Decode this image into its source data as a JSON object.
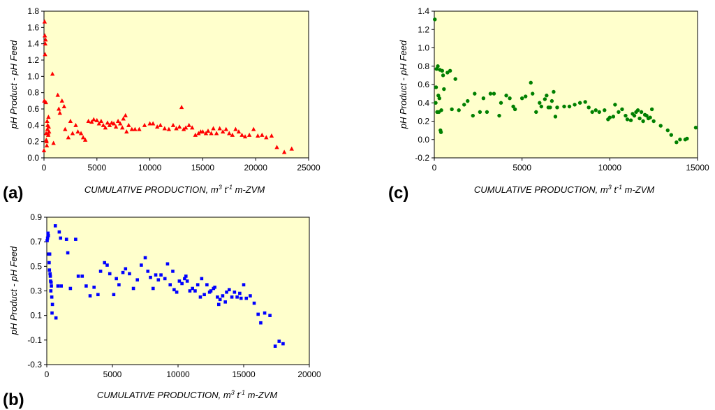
{
  "chart_data": [
    {
      "id": "a",
      "type": "scatter",
      "panel_label": "(a)",
      "xlabel": "CUMULATIVE PRODUCTION, m",
      "xlabel_sup1": "3",
      "xlabel_mid": " t",
      "xlabel_sup2": "-1",
      "xlabel_end": " m-ZVM",
      "ylabel": "pH Product - pH Feed",
      "xlim": [
        0,
        25000
      ],
      "ylim": [
        0,
        1.8
      ],
      "xticks": [
        "0",
        "5000",
        "10000",
        "15000",
        "20000",
        "25000"
      ],
      "yticks": [
        "0.0",
        "0.2",
        "0.4",
        "0.6",
        "0.8",
        "1.0",
        "1.2",
        "1.4",
        "1.6",
        "1.8"
      ],
      "marker": "triangle",
      "color": "#ff0000",
      "plot_bg": "#ffffcc",
      "points": [
        [
          0,
          0.09
        ],
        [
          30,
          0.7
        ],
        [
          60,
          1.67
        ],
        [
          80,
          1.5
        ],
        [
          100,
          1.27
        ],
        [
          120,
          1.4
        ],
        [
          150,
          1.45
        ],
        [
          180,
          0.68
        ],
        [
          200,
          0.3
        ],
        [
          220,
          0.22
        ],
        [
          250,
          0.2
        ],
        [
          270,
          0.15
        ],
        [
          300,
          0.45
        ],
        [
          320,
          0.35
        ],
        [
          350,
          0.4
        ],
        [
          380,
          0.3
        ],
        [
          400,
          0.28
        ],
        [
          420,
          0.5
        ],
        [
          450,
          0.38
        ],
        [
          480,
          0.32
        ],
        [
          800,
          1.03
        ],
        [
          900,
          0.18
        ],
        [
          1300,
          0.77
        ],
        [
          1400,
          0.6
        ],
        [
          1500,
          0.55
        ],
        [
          1700,
          0.7
        ],
        [
          1900,
          0.63
        ],
        [
          2000,
          0.35
        ],
        [
          2300,
          0.25
        ],
        [
          2500,
          0.45
        ],
        [
          2700,
          0.3
        ],
        [
          3000,
          0.4
        ],
        [
          3200,
          0.32
        ],
        [
          3500,
          0.3
        ],
        [
          3700,
          0.25
        ],
        [
          3900,
          0.22
        ],
        [
          4200,
          0.45
        ],
        [
          4500,
          0.44
        ],
        [
          4700,
          0.47
        ],
        [
          5000,
          0.46
        ],
        [
          5200,
          0.42
        ],
        [
          5400,
          0.45
        ],
        [
          5600,
          0.4
        ],
        [
          5800,
          0.37
        ],
        [
          6000,
          0.43
        ],
        [
          6200,
          0.4
        ],
        [
          6400,
          0.43
        ],
        [
          6600,
          0.42
        ],
        [
          6800,
          0.38
        ],
        [
          7000,
          0.45
        ],
        [
          7200,
          0.42
        ],
        [
          7400,
          0.37
        ],
        [
          7500,
          0.48
        ],
        [
          7700,
          0.52
        ],
        [
          7800,
          0.32
        ],
        [
          8000,
          0.4
        ],
        [
          8300,
          0.35
        ],
        [
          8600,
          0.35
        ],
        [
          9000,
          0.35
        ],
        [
          9500,
          0.4
        ],
        [
          10000,
          0.42
        ],
        [
          10300,
          0.42
        ],
        [
          10700,
          0.38
        ],
        [
          11000,
          0.4
        ],
        [
          11400,
          0.36
        ],
        [
          11800,
          0.35
        ],
        [
          12200,
          0.4
        ],
        [
          12500,
          0.36
        ],
        [
          12800,
          0.38
        ],
        [
          13000,
          0.62
        ],
        [
          13200,
          0.35
        ],
        [
          13400,
          0.37
        ],
        [
          13700,
          0.4
        ],
        [
          14000,
          0.37
        ],
        [
          14300,
          0.28
        ],
        [
          14600,
          0.3
        ],
        [
          14800,
          0.32
        ],
        [
          15000,
          0.32
        ],
        [
          15300,
          0.3
        ],
        [
          15500,
          0.33
        ],
        [
          15800,
          0.3
        ],
        [
          16000,
          0.36
        ],
        [
          16300,
          0.3
        ],
        [
          16600,
          0.36
        ],
        [
          16900,
          0.32
        ],
        [
          17200,
          0.35
        ],
        [
          17500,
          0.3
        ],
        [
          17800,
          0.28
        ],
        [
          18100,
          0.35
        ],
        [
          18400,
          0.32
        ],
        [
          18700,
          0.28
        ],
        [
          19000,
          0.26
        ],
        [
          19400,
          0.28
        ],
        [
          19800,
          0.35
        ],
        [
          20200,
          0.27
        ],
        [
          20600,
          0.28
        ],
        [
          21000,
          0.25
        ],
        [
          21500,
          0.27
        ],
        [
          22000,
          0.13
        ],
        [
          22700,
          0.07
        ],
        [
          23400,
          0.11
        ]
      ]
    },
    {
      "id": "c",
      "type": "scatter",
      "panel_label": "(c)",
      "xlabel": "CUMULATIVE PRODUCTION, m",
      "xlabel_sup1": "3",
      "xlabel_mid": " t",
      "xlabel_sup2": "-1",
      "xlabel_end": " m-ZVM",
      "ylabel": "pH Product - pH Feed",
      "xlim": [
        0,
        15000
      ],
      "ylim": [
        -0.2,
        1.4
      ],
      "xticks": [
        "0",
        "5000",
        "10000",
        "15000"
      ],
      "yticks": [
        "-0.2",
        "0.0",
        "0.2",
        "0.4",
        "0.6",
        "0.8",
        "1.0",
        "1.2",
        "1.4"
      ],
      "marker": "circle",
      "color": "#008000",
      "plot_bg": "#ffffcc",
      "points": [
        [
          30,
          1.31
        ],
        [
          80,
          0.4
        ],
        [
          100,
          0.57
        ],
        [
          130,
          0.77
        ],
        [
          160,
          0.3
        ],
        [
          200,
          0.8
        ],
        [
          230,
          0.48
        ],
        [
          260,
          0.3
        ],
        [
          290,
          0.45
        ],
        [
          320,
          0.76
        ],
        [
          350,
          0.1
        ],
        [
          380,
          0.08
        ],
        [
          400,
          0.32
        ],
        [
          450,
          0.75
        ],
        [
          500,
          0.7
        ],
        [
          550,
          0.55
        ],
        [
          750,
          0.73
        ],
        [
          900,
          0.75
        ],
        [
          1000,
          0.33
        ],
        [
          1200,
          0.66
        ],
        [
          1400,
          0.32
        ],
        [
          1700,
          0.38
        ],
        [
          1900,
          0.42
        ],
        [
          2200,
          0.26
        ],
        [
          2300,
          0.5
        ],
        [
          2600,
          0.3
        ],
        [
          2800,
          0.45
        ],
        [
          3000,
          0.3
        ],
        [
          3200,
          0.5
        ],
        [
          3400,
          0.5
        ],
        [
          3700,
          0.26
        ],
        [
          3800,
          0.4
        ],
        [
          4100,
          0.48
        ],
        [
          4300,
          0.45
        ],
        [
          4500,
          0.36
        ],
        [
          4600,
          0.33
        ],
        [
          5000,
          0.45
        ],
        [
          5200,
          0.47
        ],
        [
          5500,
          0.62
        ],
        [
          5600,
          0.5
        ],
        [
          5800,
          0.3
        ],
        [
          6000,
          0.4
        ],
        [
          6100,
          0.36
        ],
        [
          6300,
          0.44
        ],
        [
          6400,
          0.48
        ],
        [
          6500,
          0.35
        ],
        [
          6600,
          0.35
        ],
        [
          6700,
          0.42
        ],
        [
          6800,
          0.52
        ],
        [
          6900,
          0.25
        ],
        [
          7000,
          0.35
        ],
        [
          7400,
          0.36
        ],
        [
          7700,
          0.36
        ],
        [
          8000,
          0.38
        ],
        [
          8300,
          0.4
        ],
        [
          8600,
          0.41
        ],
        [
          8800,
          0.35
        ],
        [
          9000,
          0.3
        ],
        [
          9200,
          0.32
        ],
        [
          9400,
          0.3
        ],
        [
          9700,
          0.32
        ],
        [
          9900,
          0.22
        ],
        [
          10000,
          0.24
        ],
        [
          10200,
          0.25
        ],
        [
          10300,
          0.38
        ],
        [
          10500,
          0.3
        ],
        [
          10700,
          0.33
        ],
        [
          10900,
          0.26
        ],
        [
          11000,
          0.22
        ],
        [
          11200,
          0.21
        ],
        [
          11300,
          0.28
        ],
        [
          11400,
          0.26
        ],
        [
          11500,
          0.3
        ],
        [
          11600,
          0.32
        ],
        [
          11700,
          0.23
        ],
        [
          11800,
          0.3
        ],
        [
          11900,
          0.2
        ],
        [
          12000,
          0.27
        ],
        [
          12100,
          0.26
        ],
        [
          12200,
          0.23
        ],
        [
          12300,
          0.24
        ],
        [
          12400,
          0.33
        ],
        [
          12500,
          0.2
        ],
        [
          12900,
          0.15
        ],
        [
          13300,
          0.1
        ],
        [
          13500,
          0.05
        ],
        [
          13800,
          -0.03
        ],
        [
          14000,
          0.0
        ],
        [
          14300,
          0.0
        ],
        [
          14400,
          0.01
        ],
        [
          14900,
          0.13
        ]
      ]
    },
    {
      "id": "b",
      "type": "scatter",
      "panel_label": "(b)",
      "xlabel": "CUMULATIVE PRODUCTION, m",
      "xlabel_sup1": "3",
      "xlabel_mid": " t",
      "xlabel_sup2": "-1",
      "xlabel_end": " m-ZVM",
      "ylabel": "pH Product - pH Feed",
      "xlim": [
        0,
        20000
      ],
      "ylim": [
        -0.3,
        0.9
      ],
      "xticks": [
        "0",
        "5000",
        "10000",
        "15000",
        "20000"
      ],
      "yticks": [
        "-0.3",
        "-0.1",
        "0.1",
        "0.3",
        "0.5",
        "0.7",
        "0.9"
      ],
      "marker": "square",
      "color": "#0000ff",
      "plot_bg": "#ffffcc",
      "points": [
        [
          30,
          0.71
        ],
        [
          60,
          0.73
        ],
        [
          90,
          0.77
        ],
        [
          120,
          0.75
        ],
        [
          150,
          0.6
        ],
        [
          180,
          0.53
        ],
        [
          200,
          0.47
        ],
        [
          220,
          0.6
        ],
        [
          250,
          0.44
        ],
        [
          270,
          0.42
        ],
        [
          290,
          0.38
        ],
        [
          310,
          0.3
        ],
        [
          330,
          0.37
        ],
        [
          350,
          0.34
        ],
        [
          380,
          0.25
        ],
        [
          400,
          0.12
        ],
        [
          430,
          0.19
        ],
        [
          650,
          0.83
        ],
        [
          700,
          0.08
        ],
        [
          850,
          0.34
        ],
        [
          950,
          0.78
        ],
        [
          1050,
          0.73
        ],
        [
          1100,
          0.34
        ],
        [
          1500,
          0.72
        ],
        [
          1600,
          0.61
        ],
        [
          1800,
          0.32
        ],
        [
          2200,
          0.72
        ],
        [
          2400,
          0.42
        ],
        [
          2700,
          0.42
        ],
        [
          3000,
          0.34
        ],
        [
          3300,
          0.26
        ],
        [
          3600,
          0.33
        ],
        [
          3900,
          0.27
        ],
        [
          4100,
          0.46
        ],
        [
          4400,
          0.53
        ],
        [
          4600,
          0.51
        ],
        [
          4800,
          0.44
        ],
        [
          5100,
          0.27
        ],
        [
          5300,
          0.4
        ],
        [
          5500,
          0.35
        ],
        [
          5800,
          0.45
        ],
        [
          6000,
          0.48
        ],
        [
          6300,
          0.44
        ],
        [
          6600,
          0.32
        ],
        [
          6900,
          0.39
        ],
        [
          7200,
          0.51
        ],
        [
          7500,
          0.57
        ],
        [
          7700,
          0.46
        ],
        [
          7900,
          0.41
        ],
        [
          8100,
          0.32
        ],
        [
          8300,
          0.43
        ],
        [
          8500,
          0.39
        ],
        [
          8700,
          0.43
        ],
        [
          9000,
          0.4
        ],
        [
          9200,
          0.52
        ],
        [
          9400,
          0.35
        ],
        [
          9600,
          0.46
        ],
        [
          9700,
          0.31
        ],
        [
          9900,
          0.29
        ],
        [
          10100,
          0.38
        ],
        [
          10300,
          0.36
        ],
        [
          10500,
          0.4
        ],
        [
          10600,
          0.42
        ],
        [
          10700,
          0.38
        ],
        [
          10900,
          0.3
        ],
        [
          11100,
          0.32
        ],
        [
          11300,
          0.3
        ],
        [
          11500,
          0.35
        ],
        [
          11700,
          0.25
        ],
        [
          11800,
          0.4
        ],
        [
          12000,
          0.27
        ],
        [
          12200,
          0.35
        ],
        [
          12400,
          0.29
        ],
        [
          12500,
          0.3
        ],
        [
          12700,
          0.32
        ],
        [
          12800,
          0.33
        ],
        [
          13000,
          0.25
        ],
        [
          13100,
          0.19
        ],
        [
          13200,
          0.23
        ],
        [
          13400,
          0.26
        ],
        [
          13600,
          0.21
        ],
        [
          13700,
          0.29
        ],
        [
          13900,
          0.31
        ],
        [
          14100,
          0.25
        ],
        [
          14300,
          0.29
        ],
        [
          14500,
          0.25
        ],
        [
          14700,
          0.28
        ],
        [
          14800,
          0.24
        ],
        [
          15000,
          0.35
        ],
        [
          15200,
          0.24
        ],
        [
          15500,
          0.26
        ],
        [
          15800,
          0.2
        ],
        [
          16100,
          0.11
        ],
        [
          16300,
          0.04
        ],
        [
          16600,
          0.12
        ],
        [
          17000,
          0.1
        ],
        [
          17400,
          -0.15
        ],
        [
          17700,
          -0.11
        ],
        [
          18000,
          -0.13
        ]
      ]
    }
  ]
}
